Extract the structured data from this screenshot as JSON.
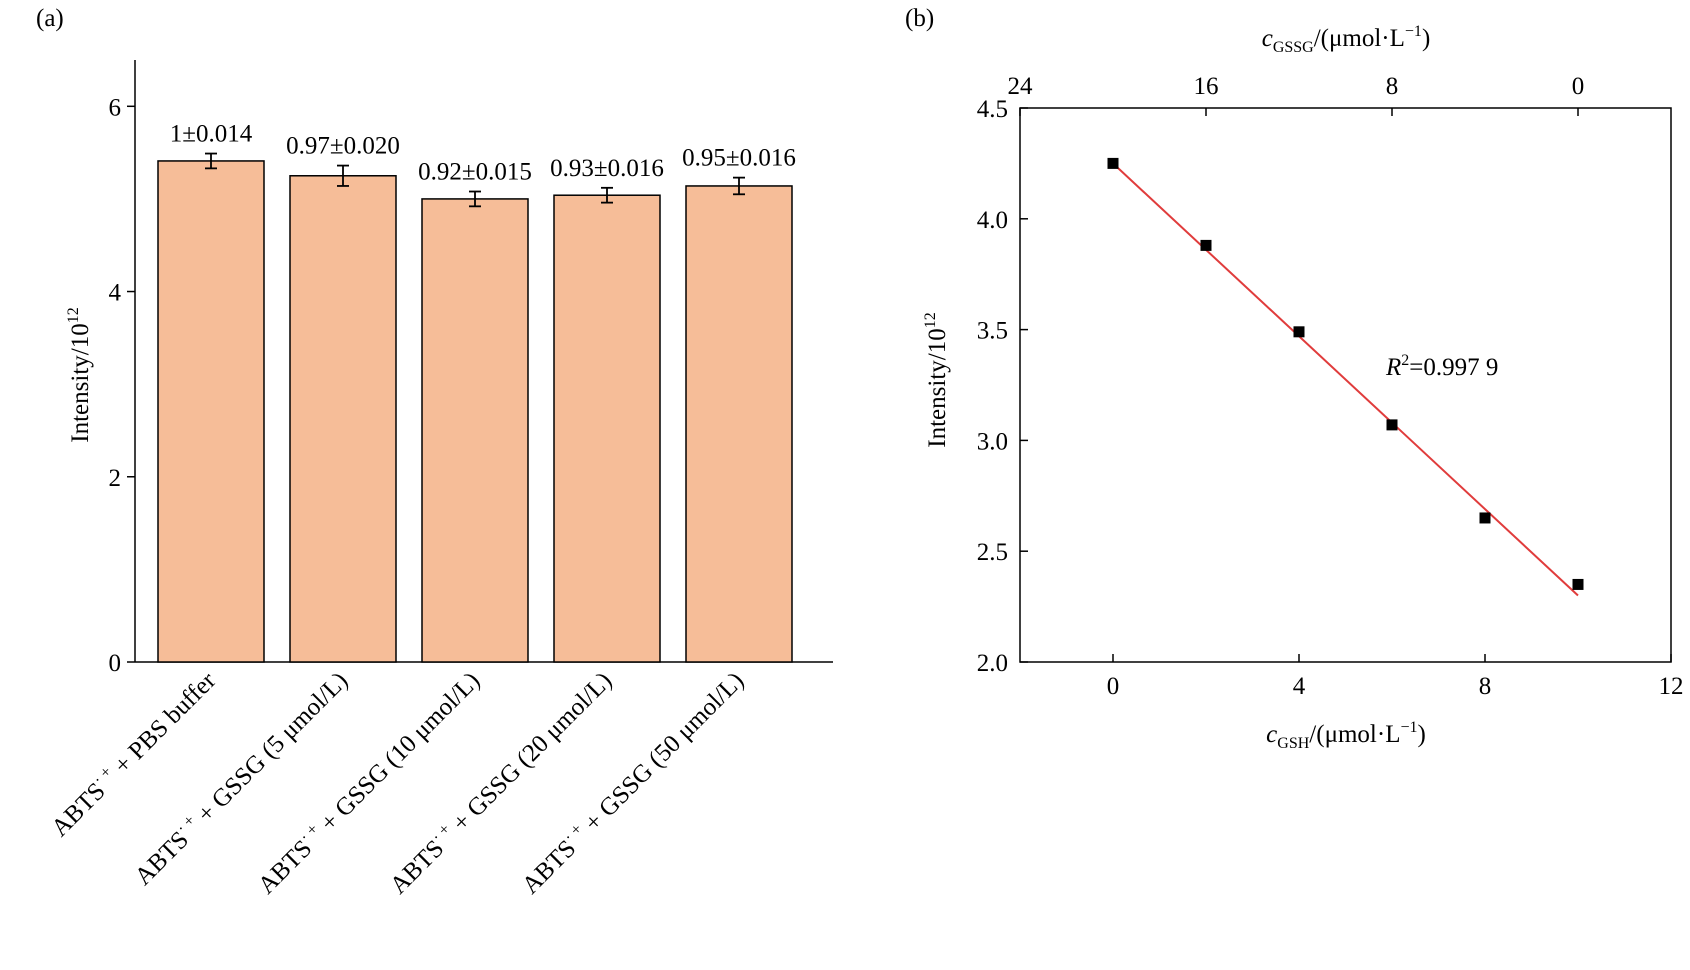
{
  "colors": {
    "bar_fill": "#F6BD98",
    "bar_stroke": "#000000",
    "fit_line": "#E03C3C",
    "point": "#000000"
  },
  "chart_data": [
    {
      "type": "bar",
      "panel_label": "(a)",
      "ylabel_main": "Intensity/10",
      "ylabel_sup": "12",
      "ylim": [
        0,
        6.5
      ],
      "yticks": [
        0,
        2,
        4,
        6
      ],
      "grid": false,
      "categories": [
        {
          "main": "ABTS",
          "sup": "· +",
          "rest": " + PBS buffer"
        },
        {
          "main": "ABTS",
          "sup": "· +",
          "rest": " + GSSG (5 μmol/L)"
        },
        {
          "main": "ABTS",
          "sup": "· +",
          "rest": " + GSSG (10 μmol/L)"
        },
        {
          "main": "ABTS",
          "sup": "· +",
          "rest": " + GSSG (20 μmol/L)"
        },
        {
          "main": "ABTS",
          "sup": "· +",
          "rest": " + GSSG (50 μmol/L)"
        }
      ],
      "values": [
        5.41,
        5.25,
        5.0,
        5.04,
        5.14
      ],
      "errors": [
        0.08,
        0.11,
        0.08,
        0.08,
        0.09
      ],
      "data_labels": [
        "1±0.014",
        "0.97±0.020",
        "0.92±0.015",
        "0.93±0.016",
        "0.95±0.016"
      ]
    },
    {
      "type": "scatter",
      "panel_label": "(b)",
      "ylabel_main": "Intensity/10",
      "ylabel_sup": "12",
      "xlabel_var": "c",
      "xlabel_sub": "GSH",
      "xlabel_unit": "/(μmol·L",
      "xlabel_sup": "−1",
      "xlabel_close": ")",
      "top_xlabel_var": "c",
      "top_xlabel_sub": "GSSG",
      "top_xlabel_unit": "/(μmol·L",
      "top_xlabel_sup": "−1",
      "top_xlabel_close": ")",
      "xlim": [
        -2,
        12
      ],
      "ylim": [
        2.0,
        4.5
      ],
      "xticks": [
        0,
        4,
        8,
        12
      ],
      "yticks": [
        "2.0",
        "2.5",
        "3.0",
        "3.5",
        "4.0",
        "4.5"
      ],
      "top_xticks": [
        "24",
        "16",
        "8",
        "0"
      ],
      "grid": false,
      "x": [
        0,
        2,
        4,
        6,
        8,
        10
      ],
      "y": [
        4.25,
        3.88,
        3.49,
        3.07,
        2.65,
        2.35
      ],
      "fit_line": {
        "x": [
          0,
          10
        ],
        "y": [
          4.25,
          2.3
        ]
      },
      "annotation_var": "R",
      "annotation_sup": "2",
      "annotation_value": "=0.997 9"
    }
  ]
}
